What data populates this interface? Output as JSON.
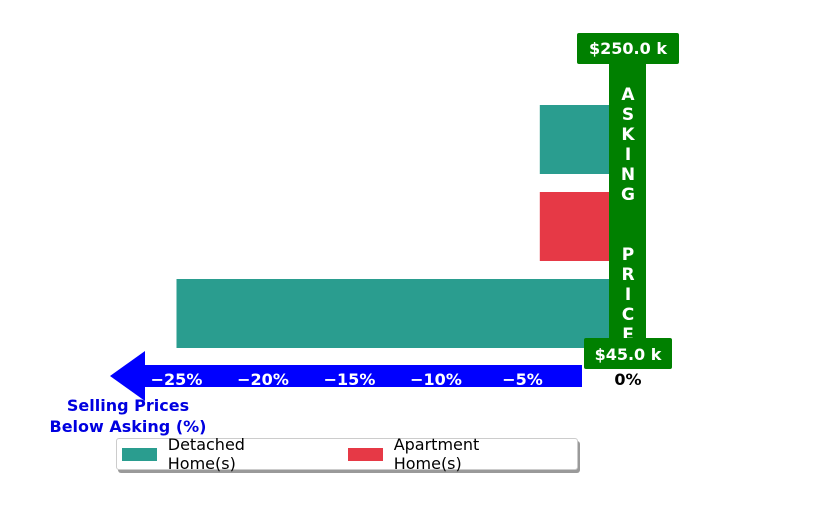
{
  "chart_data": {
    "type": "bar",
    "orientation": "horizontal",
    "categories": [
      "bar-top",
      "bar-middle",
      "bar-bottom"
    ],
    "bars": [
      {
        "series": "Detached Home(s)",
        "value": -4.0
      },
      {
        "series": "Apartment Home(s)",
        "value": -4.0
      },
      {
        "series": "Detached Home(s)",
        "value": -25.0
      }
    ],
    "series": [
      {
        "name": "Detached Home(s)",
        "color": "#2a9d8f"
      },
      {
        "name": "Apartment Home(s)",
        "color": "#e63946"
      }
    ],
    "xlim": [
      -28,
      0
    ],
    "x_ticks": [
      {
        "value": -25,
        "label": "−25%"
      },
      {
        "value": -20,
        "label": "−20%"
      },
      {
        "value": -15,
        "label": "−15%"
      },
      {
        "value": -10,
        "label": "−10%"
      },
      {
        "value": -5,
        "label": "−5%"
      }
    ],
    "zero_label": "0%",
    "axis_label_lines": [
      "Selling Prices",
      "Below Asking (%)"
    ],
    "axis_color": "#0000ff",
    "asking_price_label": "ASKING  PRICE",
    "asking_price_color": "#008000",
    "price_top": "$250.0 k",
    "price_bottom": "$45.0 k",
    "legend": {
      "position": "bottom",
      "entries": [
        "Detached Home(s)",
        "Apartment Home(s)"
      ]
    }
  }
}
